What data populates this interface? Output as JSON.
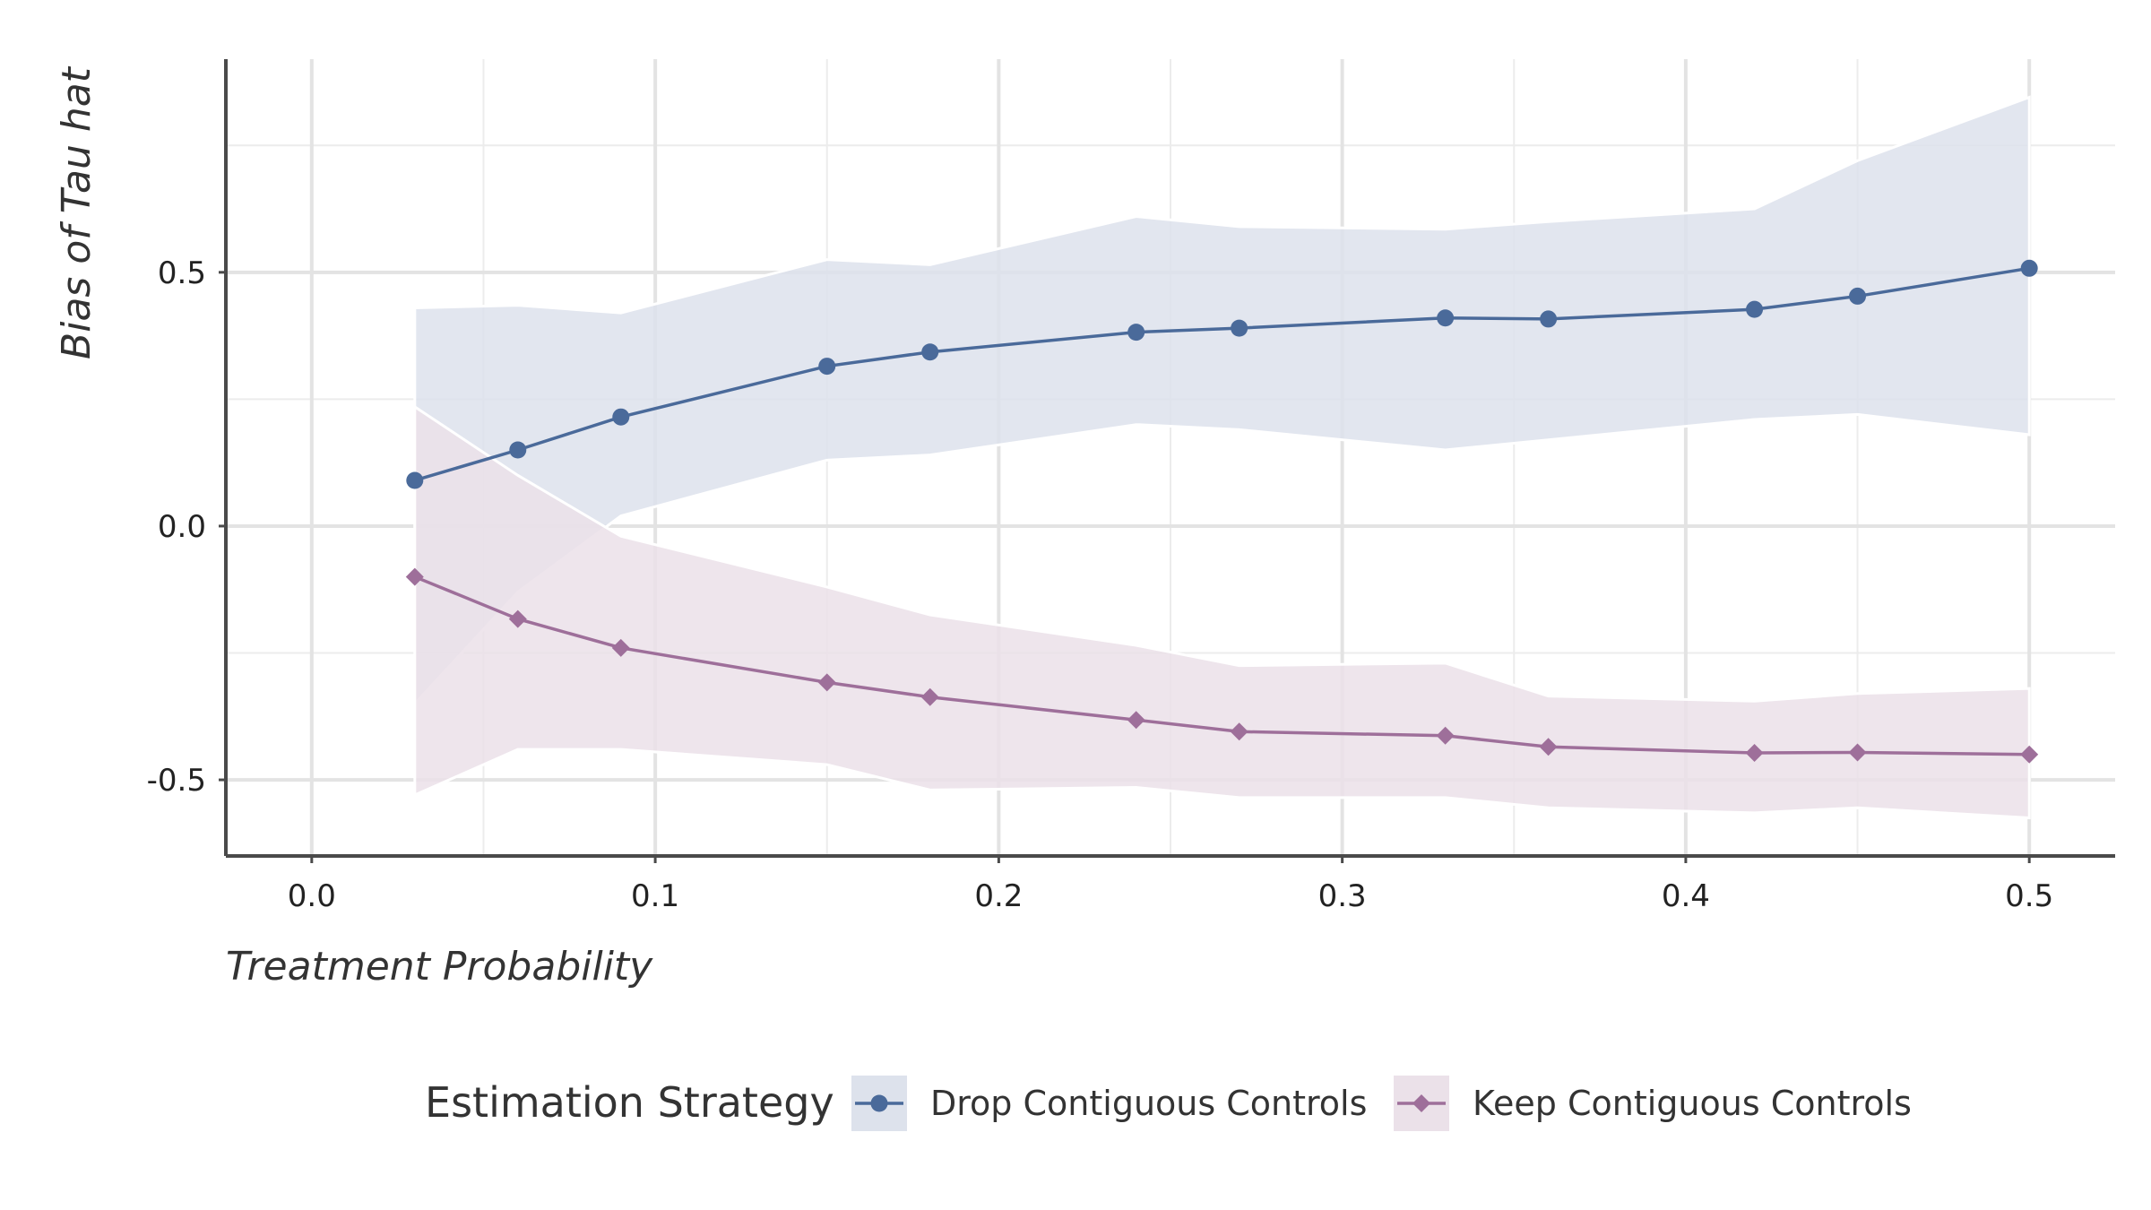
{
  "chart_data": {
    "type": "line",
    "xlabel": "Treatment Probability",
    "ylabel": "Bias of Tau hat",
    "xlim": [
      -0.025,
      0.525
    ],
    "ylim": [
      -0.65,
      0.92
    ],
    "xticks": [
      0.0,
      0.1,
      0.2,
      0.3,
      0.4,
      0.5
    ],
    "xtick_labels": [
      "0.0",
      "0.1",
      "0.2",
      "0.3",
      "0.4",
      "0.5"
    ],
    "yticks": [
      -0.5,
      0.0,
      0.5
    ],
    "ytick_labels": [
      "-0.5",
      "0.0",
      "0.5"
    ],
    "grid": true,
    "legend": {
      "title": "Estimation Strategy",
      "position": "bottom"
    },
    "series": [
      {
        "name": "Drop Contiguous Controls",
        "color": "#4a6a9a",
        "ribbon_color": "#dde2ec",
        "marker": "circle",
        "x": [
          0.03,
          0.06,
          0.09,
          0.15,
          0.18,
          0.24,
          0.27,
          0.33,
          0.36,
          0.42,
          0.45,
          0.5
        ],
        "y": [
          0.09,
          0.15,
          0.215,
          0.315,
          0.343,
          0.382,
          0.39,
          0.41,
          0.408,
          0.427,
          0.453,
          0.508
        ],
        "lower": [
          -0.35,
          -0.13,
          0.02,
          0.13,
          0.14,
          0.2,
          0.19,
          0.15,
          0.17,
          0.21,
          0.22,
          0.18
        ],
        "upper": [
          0.43,
          0.435,
          0.42,
          0.525,
          0.515,
          0.61,
          0.59,
          0.585,
          0.6,
          0.625,
          0.72,
          0.845
        ]
      },
      {
        "name": "Keep Contiguous Controls",
        "color": "#9e6f9a",
        "ribbon_color": "#ebe1e9",
        "marker": "diamond",
        "x": [
          0.03,
          0.06,
          0.09,
          0.15,
          0.18,
          0.24,
          0.27,
          0.33,
          0.36,
          0.42,
          0.45,
          0.5
        ],
        "y": [
          -0.1,
          -0.183,
          -0.24,
          -0.308,
          -0.337,
          -0.382,
          -0.405,
          -0.413,
          -0.435,
          -0.447,
          -0.446,
          -0.45
        ],
        "lower": [
          -0.53,
          -0.44,
          -0.44,
          -0.47,
          -0.52,
          -0.515,
          -0.535,
          -0.535,
          -0.555,
          -0.565,
          -0.555,
          -0.575
        ],
        "upper": [
          0.235,
          0.1,
          -0.02,
          -0.12,
          -0.175,
          -0.235,
          -0.275,
          -0.27,
          -0.335,
          -0.345,
          -0.33,
          -0.32
        ]
      }
    ]
  }
}
